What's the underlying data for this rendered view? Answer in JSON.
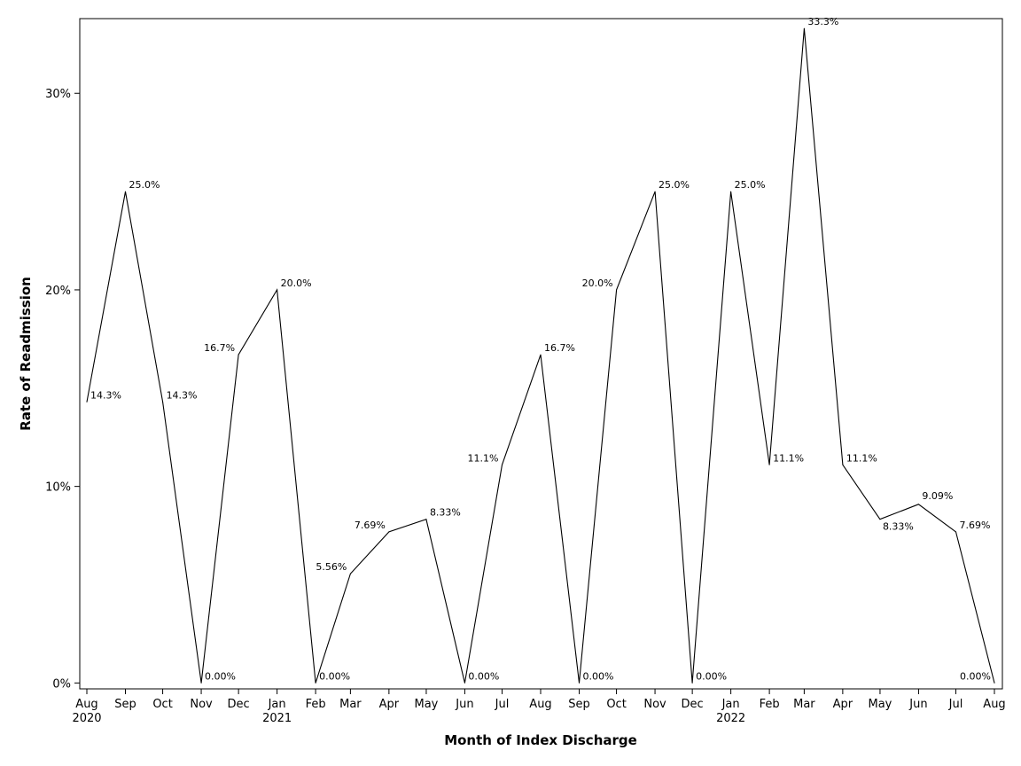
{
  "chart_data": {
    "type": "line",
    "title": "",
    "xlabel": "Month of Index Discharge",
    "ylabel": "Rate of Readmission",
    "ylim": [
      -0.3,
      33.8
    ],
    "yticks": [
      0,
      10,
      20,
      30
    ],
    "ytick_labels": [
      "0%",
      "10%",
      "20%",
      "30%"
    ],
    "categories": [
      {
        "month": "Aug",
        "year": "2020"
      },
      {
        "month": "Sep",
        "year": ""
      },
      {
        "month": "Oct",
        "year": ""
      },
      {
        "month": "Nov",
        "year": ""
      },
      {
        "month": "Dec",
        "year": ""
      },
      {
        "month": "Jan",
        "year": "2021"
      },
      {
        "month": "Feb",
        "year": ""
      },
      {
        "month": "Mar",
        "year": ""
      },
      {
        "month": "Apr",
        "year": ""
      },
      {
        "month": "May",
        "year": ""
      },
      {
        "month": "Jun",
        "year": ""
      },
      {
        "month": "Jul",
        "year": ""
      },
      {
        "month": "Aug",
        "year": ""
      },
      {
        "month": "Sep",
        "year": ""
      },
      {
        "month": "Oct",
        "year": ""
      },
      {
        "month": "Nov",
        "year": ""
      },
      {
        "month": "Dec",
        "year": ""
      },
      {
        "month": "Jan",
        "year": "2022"
      },
      {
        "month": "Feb",
        "year": ""
      },
      {
        "month": "Mar",
        "year": ""
      },
      {
        "month": "Apr",
        "year": ""
      },
      {
        "month": "May",
        "year": ""
      },
      {
        "month": "Jun",
        "year": ""
      },
      {
        "month": "Jul",
        "year": ""
      },
      {
        "month": "Aug",
        "year": ""
      }
    ],
    "x_days": [
      0,
      31,
      61,
      92,
      122,
      153,
      184,
      212,
      243,
      273,
      304,
      334,
      365,
      396,
      426,
      457,
      487,
      518,
      549,
      577,
      608,
      638,
      669,
      699,
      730
    ],
    "series": [
      {
        "name": "Rate of Readmission",
        "color": "#000000",
        "values": [
          14.3,
          25.0,
          14.3,
          0.0,
          16.7,
          20.0,
          0.0,
          5.56,
          7.69,
          8.33,
          0.0,
          11.1,
          16.7,
          0.0,
          20.0,
          25.0,
          0.0,
          25.0,
          11.1,
          33.3,
          11.1,
          8.33,
          9.09,
          7.69,
          0.0
        ],
        "data_labels": [
          "14.3%",
          "25.0%",
          "14.3%",
          "0.00%",
          "16.7%",
          "20.0%",
          "0.00%",
          "5.56%",
          "7.69%",
          "8.33%",
          "0.00%",
          "11.1%",
          "16.7%",
          "0.00%",
          "20.0%",
          "25.0%",
          "0.00%",
          "25.0%",
          "11.1%",
          "33.3%",
          "11.1%",
          "8.33%",
          "9.09%",
          "7.69%",
          "0.00%"
        ],
        "label_positions": [
          "right",
          "right",
          "right",
          "right",
          "left",
          "right",
          "right",
          "left",
          "left",
          "right",
          "right",
          "left",
          "right",
          "right",
          "left",
          "right",
          "right",
          "right",
          "right",
          "right",
          "right",
          "below",
          "above",
          "right",
          "left"
        ]
      }
    ],
    "grid": false,
    "legend": "none"
  }
}
